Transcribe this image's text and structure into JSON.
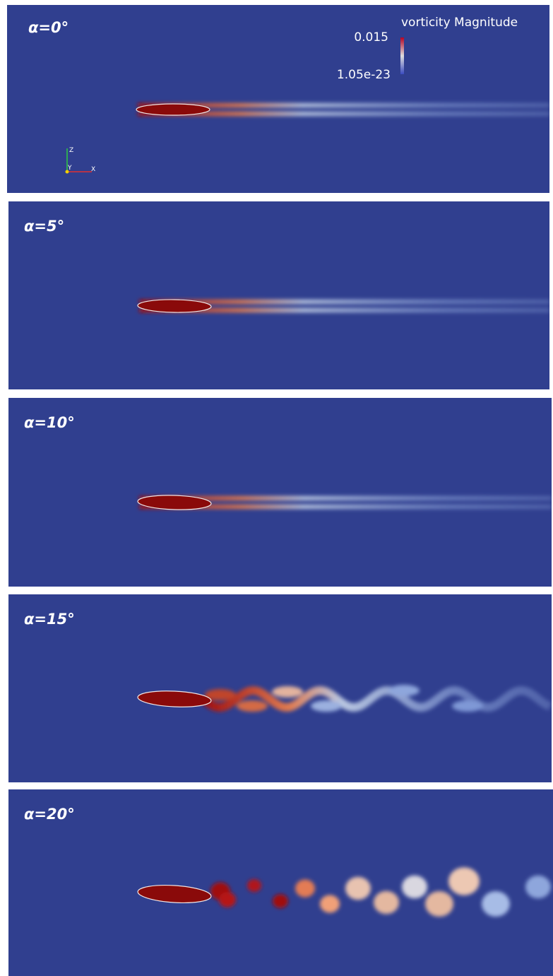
{
  "panels": [
    {
      "label": "α=0°"
    },
    {
      "label": "α=5°"
    },
    {
      "label": "α=10°"
    },
    {
      "label": "α=15°"
    },
    {
      "label": "α=20°"
    }
  ],
  "colorbar": {
    "title": "vorticity Magnitude",
    "max": "0.015",
    "min": "1.05e-23"
  },
  "axes": {
    "z": "Z",
    "y": "Y",
    "x": "X"
  }
}
